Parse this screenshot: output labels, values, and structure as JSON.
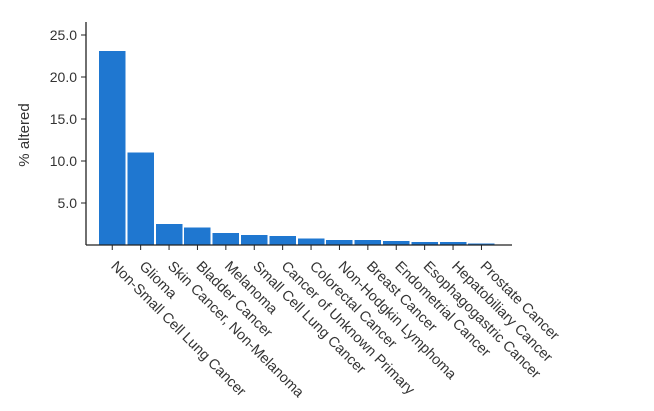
{
  "chart_data": {
    "type": "bar",
    "title": "",
    "xlabel": "",
    "ylabel": "% altered",
    "ylim": [
      0,
      26
    ],
    "yticks": [
      5.0,
      10.0,
      15.0,
      20.0,
      25.0
    ],
    "ytick_labels": [
      "5.0",
      "10.0",
      "15.0",
      "20.0",
      "25.0"
    ],
    "grid": false,
    "legend": "none",
    "bar_color": "#1f77d0",
    "categories": [
      "Non-Small Cell Lung Cancer",
      "Glioma",
      "Skin Cancer, Non-Melanoma",
      "Bladder Cancer",
      "Melanoma",
      "Small Cell Lung Cancer",
      "Cancer of Unknown Primary",
      "Colorectal Cancer",
      "Non-Hodgkin Lymphoma",
      "Breast Cancer",
      "Endometrial Cancer",
      "Esophagogastric Cancer",
      "Hepatobiliary Cancer",
      "Prostate Cancer"
    ],
    "values": [
      23.1,
      11.0,
      2.5,
      2.1,
      1.4,
      1.2,
      1.1,
      0.8,
      0.6,
      0.6,
      0.45,
      0.35,
      0.35,
      0.15
    ]
  }
}
